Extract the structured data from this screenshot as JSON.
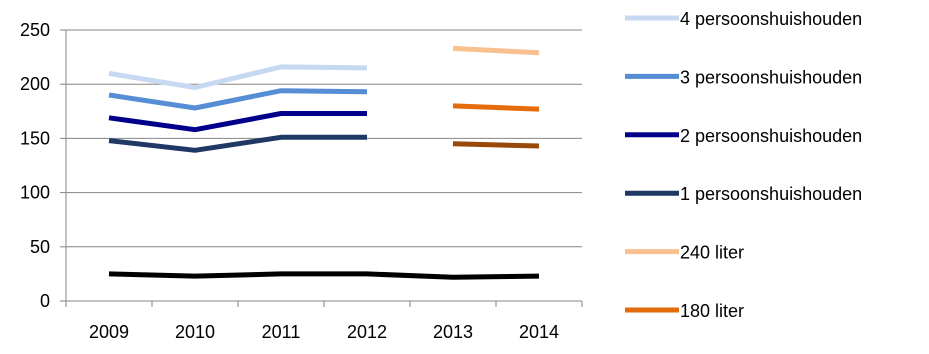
{
  "chart_data": {
    "type": "line",
    "categories": [
      "2009",
      "2010",
      "2011",
      "2012",
      "2013",
      "2014"
    ],
    "ylim": [
      0,
      250
    ],
    "yticks": [
      0,
      50,
      100,
      150,
      200,
      250
    ],
    "grid": "horizontal",
    "legend_placement": "right",
    "series": [
      {
        "name": "4 persoonshuishouden",
        "color": "#c6d9f1",
        "values": [
          210,
          197,
          216,
          215,
          null,
          null
        ],
        "in_legend": true
      },
      {
        "name": "3 persoonshuishouden",
        "color": "#558ed5",
        "values": [
          190,
          178,
          194,
          193,
          null,
          null
        ],
        "in_legend": true
      },
      {
        "name": "2 persoonshuishouden",
        "color": "#00008b",
        "values": [
          169,
          158,
          173,
          173,
          null,
          null
        ],
        "in_legend": true
      },
      {
        "name": "1 persoonshuishouden",
        "color": "#1f3864",
        "values": [
          148,
          139,
          151,
          151,
          null,
          null
        ],
        "in_legend": true
      },
      {
        "name": "240 liter",
        "color": "#fac090",
        "values": [
          null,
          null,
          null,
          null,
          233,
          229
        ],
        "in_legend": true
      },
      {
        "name": "180 liter",
        "color": "#e46c0a",
        "values": [
          null,
          null,
          null,
          null,
          180,
          177
        ],
        "in_legend": true
      },
      {
        "name": "",
        "color": "#984807",
        "values": [
          null,
          null,
          null,
          null,
          145,
          143
        ],
        "in_legend": false
      },
      {
        "name": "",
        "color": "#000000",
        "values": [
          25,
          23,
          25,
          25,
          22,
          23
        ],
        "in_legend": false
      }
    ]
  }
}
